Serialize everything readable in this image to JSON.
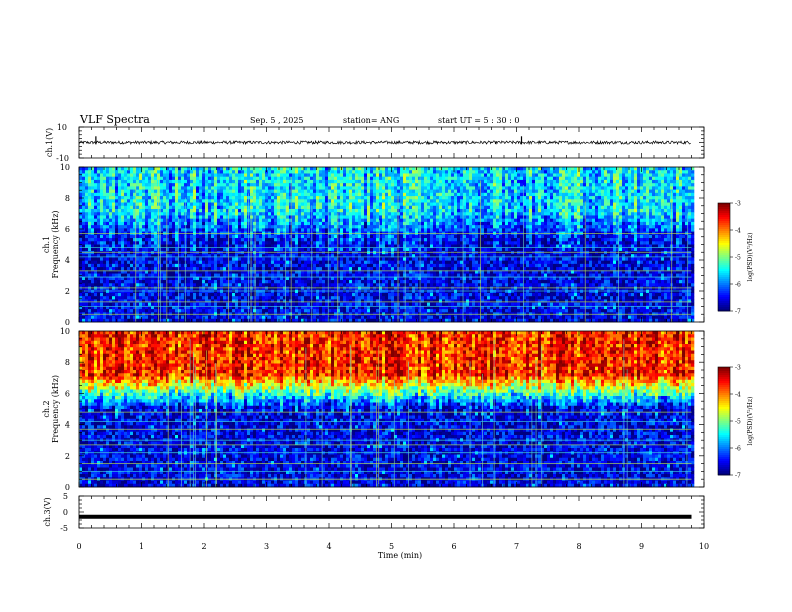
{
  "header": {
    "title": "VLF Spectra",
    "date": "Sep. 5 , 2025",
    "station": "station= ANG",
    "start": "start  UT =   5 : 30 : 0"
  },
  "chart_data": [
    {
      "type": "line",
      "name": "ch1-waveform",
      "ylabel": "ch.1(V)",
      "ylim": [
        -10,
        10
      ],
      "yticks": [
        "10",
        "-10"
      ],
      "baseline_value": 0,
      "noise_amplitude": 1,
      "spike_times_min": [
        0.27,
        7.08
      ],
      "series": [
        {
          "name": "ch.1",
          "x_range": [
            0,
            9.8
          ]
        }
      ]
    },
    {
      "type": "heatmap",
      "name": "ch1-spectrogram",
      "ylabel_top": "ch.1",
      "ylabel": "Frequency  (kHz)",
      "ylim": [
        0,
        10
      ],
      "yticks": [
        "0",
        "2",
        "4",
        "6",
        "8",
        "10"
      ],
      "x_range": [
        0,
        9.8
      ],
      "colorbar": {
        "label": "log(PSD)(V²/Hz)",
        "range": [
          -7,
          -3
        ],
        "ticks": [
          "-3",
          "-4",
          "-5",
          "-6",
          "-7"
        ]
      },
      "intensity_profile": {
        "low_kHz_level": -6.6,
        "high_kHz_level": -5.6
      },
      "horizontal_lines_kHz": [
        0.5,
        1.0,
        1.3,
        2.0,
        2.2,
        2.9,
        3.3,
        4.2,
        4.5,
        4.8,
        5.7
      ]
    },
    {
      "type": "heatmap",
      "name": "ch2-spectrogram",
      "ylabel_top": "ch.2",
      "ylabel": "Frequency  (kHz)",
      "ylim": [
        0,
        10
      ],
      "yticks": [
        "0",
        "2",
        "4",
        "6",
        "8",
        "10"
      ],
      "x_range": [
        0,
        9.8
      ],
      "colorbar": {
        "label": "log(PSD)(V²/Hz)",
        "range": [
          -7,
          -3
        ],
        "ticks": [
          "-3",
          "-4",
          "-5",
          "-6",
          "-7"
        ]
      },
      "intensity_profile": {
        "low_kHz_level": -6.6,
        "high_kHz_level": -3.6
      },
      "horizontal_lines_kHz": [
        0.5,
        1.0,
        1.5,
        2.2,
        2.7,
        3.0,
        3.7,
        4.2,
        4.8
      ]
    },
    {
      "type": "line",
      "name": "ch3-waveform",
      "ylabel": "ch.3(V)",
      "ylim": [
        -5,
        5
      ],
      "yticks": [
        "5",
        "0",
        "-5"
      ],
      "baseline_value": -1.5,
      "series": [
        {
          "name": "ch.3",
          "x_range": [
            0,
            9.8
          ]
        }
      ]
    }
  ],
  "xaxis": {
    "label": "Time  (min)",
    "xlim": [
      0,
      10
    ],
    "ticks": [
      "0",
      "1",
      "2",
      "3",
      "4",
      "5",
      "6",
      "7",
      "8",
      "9",
      "10"
    ]
  }
}
